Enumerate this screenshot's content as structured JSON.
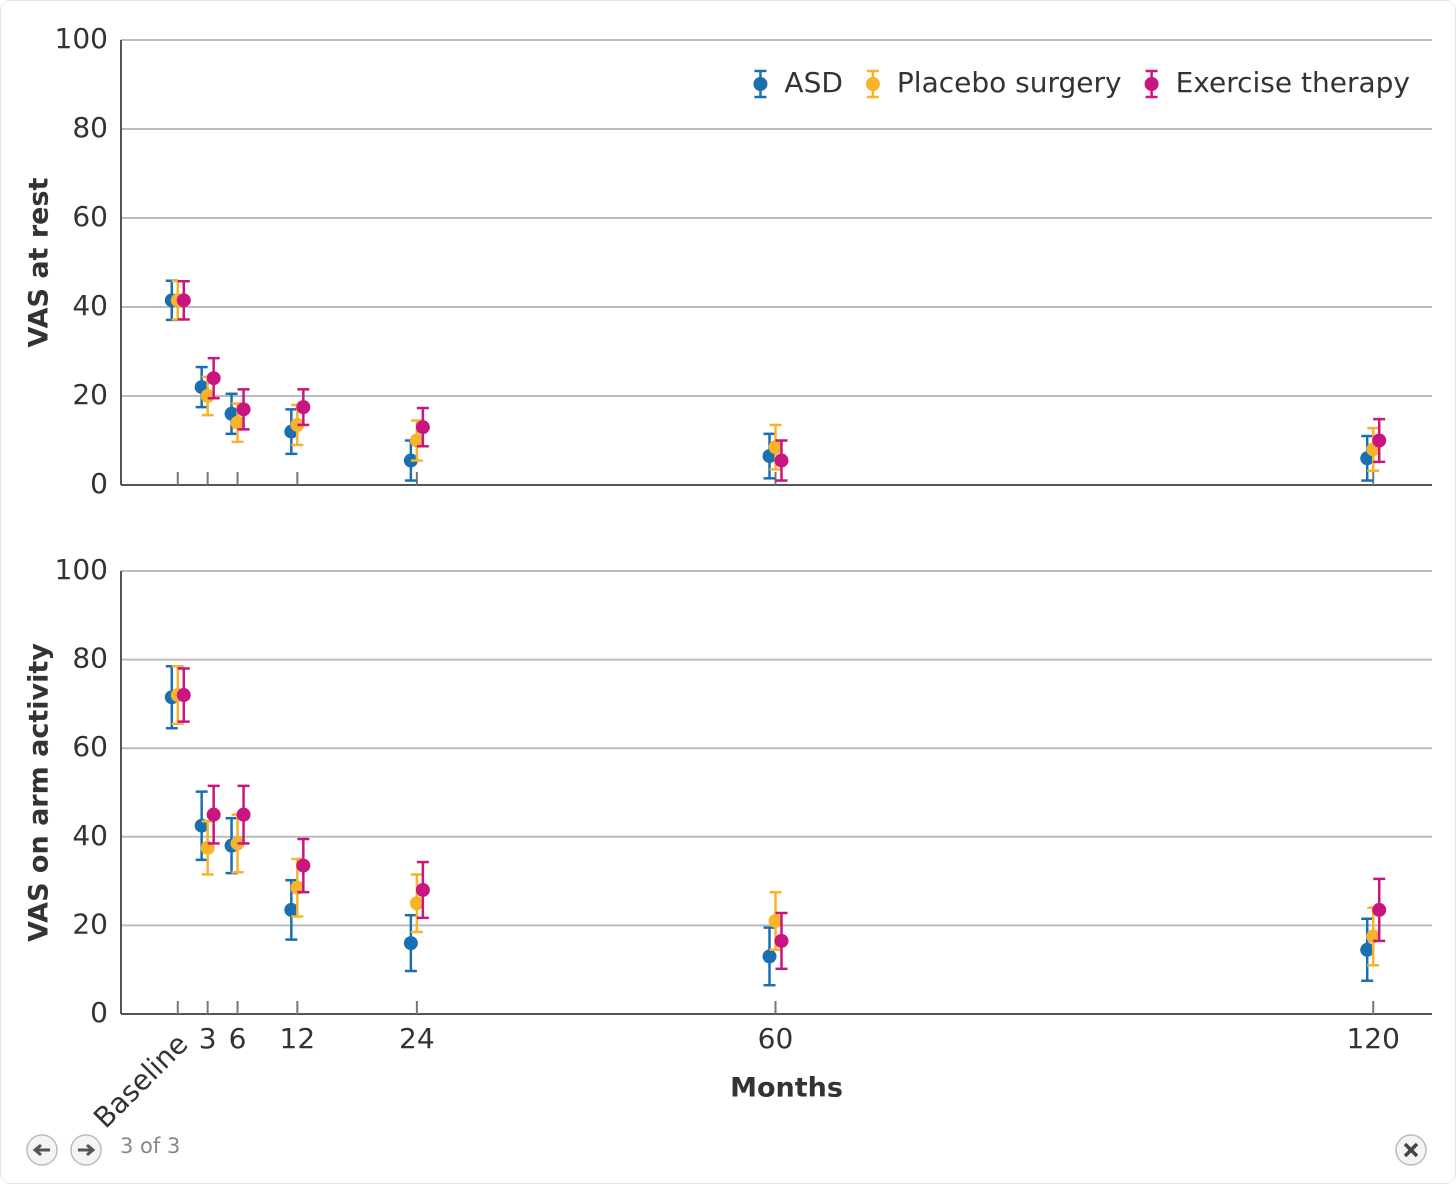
{
  "chart_data": [
    {
      "type": "errorbar",
      "ylabel": "VAS at rest",
      "x": [
        0,
        3,
        6,
        12,
        24,
        60,
        120
      ],
      "xlim": [
        -5.7,
        125.9
      ],
      "ylim": [
        0,
        100
      ],
      "yticks": [
        0,
        20,
        40,
        60,
        80,
        100
      ],
      "grid": true,
      "legend": "upper right",
      "series": [
        {
          "name": "ASD",
          "color": "#1a6faf",
          "values": [
            41.5,
            22,
            16,
            12,
            5.5,
            6.5,
            6
          ],
          "errors": [
            4.4,
            4.5,
            4.5,
            5,
            4.5,
            5,
            5
          ]
        },
        {
          "name": "Placebo surgery",
          "color": "#f7b32b",
          "values": [
            41.5,
            20,
            14,
            13.5,
            10,
            8.5,
            8
          ],
          "errors": [
            4.3,
            4.3,
            4.3,
            4.5,
            4.5,
            5,
            4.8
          ]
        },
        {
          "name": "Exercise therapy",
          "color": "#c8157f",
          "values": [
            41.5,
            24,
            17,
            17.5,
            13,
            5.5,
            10
          ],
          "errors": [
            4.3,
            4.5,
            4.5,
            4,
            4.3,
            4.5,
            4.8
          ]
        }
      ]
    },
    {
      "type": "errorbar",
      "ylabel": "VAS on arm activity",
      "xlabel": "Months",
      "x": [
        0,
        3,
        6,
        12,
        24,
        60,
        120
      ],
      "xlim": [
        -5.7,
        125.9
      ],
      "xticks": [
        {
          "value": 0,
          "label": "Baseline"
        },
        3,
        6,
        12,
        24,
        60,
        120
      ],
      "ylim": [
        0,
        100
      ],
      "yticks": [
        0,
        20,
        40,
        60,
        80,
        100
      ],
      "grid": true,
      "series": [
        {
          "name": "ASD",
          "color": "#1a6faf",
          "values": [
            71.5,
            42.5,
            38,
            23.5,
            16,
            13,
            14.5
          ],
          "errors": [
            7,
            7.7,
            6.2,
            6.7,
            6.3,
            6.5,
            7
          ]
        },
        {
          "name": "Placebo surgery",
          "color": "#f7b32b",
          "values": [
            72,
            37.5,
            38.5,
            28.5,
            25,
            21,
            17.5
          ],
          "errors": [
            6.5,
            6,
            6.5,
            6.5,
            6.5,
            6.5,
            6.5
          ]
        },
        {
          "name": "Exercise therapy",
          "color": "#c8157f",
          "values": [
            72,
            45,
            45,
            33.5,
            28,
            16.5,
            23.5
          ],
          "errors": [
            6,
            6.5,
            6.5,
            6,
            6.3,
            6.3,
            7
          ]
        }
      ]
    }
  ],
  "viewer": {
    "counter": "3 of 3"
  }
}
